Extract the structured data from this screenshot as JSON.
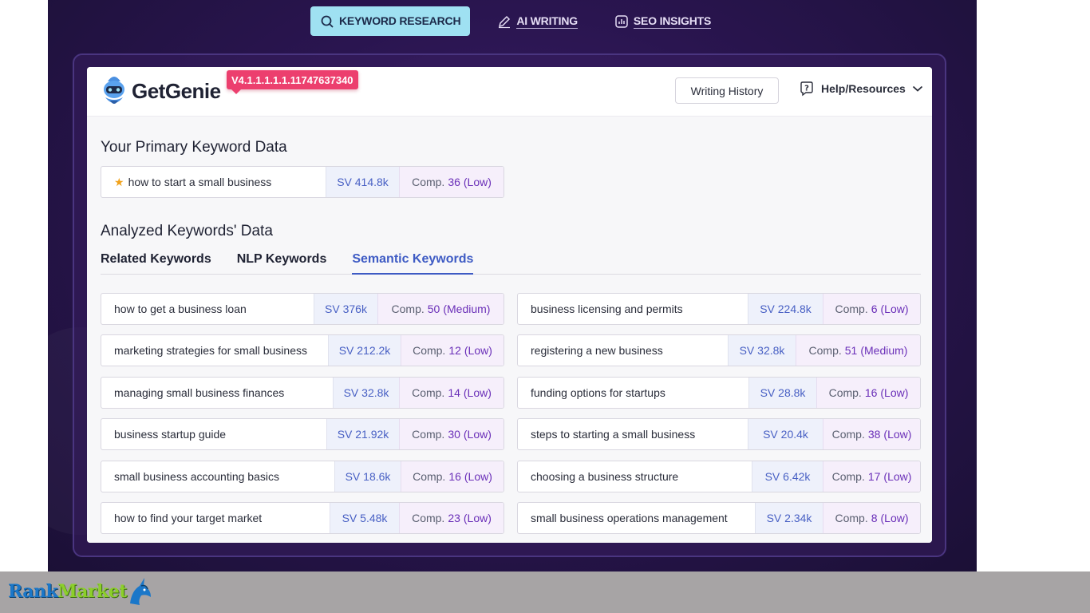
{
  "nav": {
    "tabs": [
      {
        "label": "KEYWORD RESEARCH",
        "icon": "keyword-research-icon",
        "active": true
      },
      {
        "label": "AI WRITING",
        "icon": "pen-icon",
        "active": false
      },
      {
        "label": "SEO INSIGHTS",
        "icon": "chart-icon",
        "active": false
      }
    ]
  },
  "header": {
    "brand": "GetGenie",
    "version": "V4.1.1.1.1.1.11747637340",
    "writing_history": "Writing History",
    "help": "Help/Resources"
  },
  "primary": {
    "title": "Your Primary Keyword Data",
    "keyword": "how to start a small business",
    "sv_label": "SV",
    "sv": "414.8k",
    "comp_label": "Comp.",
    "comp": "36",
    "level": "(Low)"
  },
  "analyzed": {
    "title": "Analyzed Keywords' Data",
    "tabs": [
      "Related Keywords",
      "NLP Keywords",
      "Semantic Keywords"
    ],
    "active_tab": "Semantic Keywords",
    "left": [
      {
        "kw": "how to get a business loan",
        "sv": "376k",
        "comp": "50",
        "level": "(Medium)"
      },
      {
        "kw": "marketing strategies for small business",
        "sv": "212.2k",
        "comp": "12",
        "level": "(Low)"
      },
      {
        "kw": "managing small business finances",
        "sv": "32.8k",
        "comp": "14",
        "level": "(Low)"
      },
      {
        "kw": "business startup guide",
        "sv": "21.92k",
        "comp": "30",
        "level": "(Low)"
      },
      {
        "kw": "small business accounting basics",
        "sv": "18.6k",
        "comp": "16",
        "level": "(Low)"
      },
      {
        "kw": "how to find your target market",
        "sv": "5.48k",
        "comp": "23",
        "level": "(Low)"
      }
    ],
    "right": [
      {
        "kw": "business licensing and permits",
        "sv": "224.8k",
        "comp": "6",
        "level": "(Low)"
      },
      {
        "kw": "registering a new business",
        "sv": "32.8k",
        "comp": "51",
        "level": "(Medium)"
      },
      {
        "kw": "funding options for startups",
        "sv": "28.8k",
        "comp": "16",
        "level": "(Low)"
      },
      {
        "kw": "steps to starting a small business",
        "sv": "20.4k",
        "comp": "38",
        "level": "(Low)"
      },
      {
        "kw": "choosing a business structure",
        "sv": "6.42k",
        "comp": "17",
        "level": "(Low)"
      },
      {
        "kw": "small business operations management",
        "sv": "2.34k",
        "comp": "8",
        "level": "(Low)"
      }
    ]
  },
  "watermark": {
    "text_a": "Rank",
    "text_b": "Market"
  }
}
